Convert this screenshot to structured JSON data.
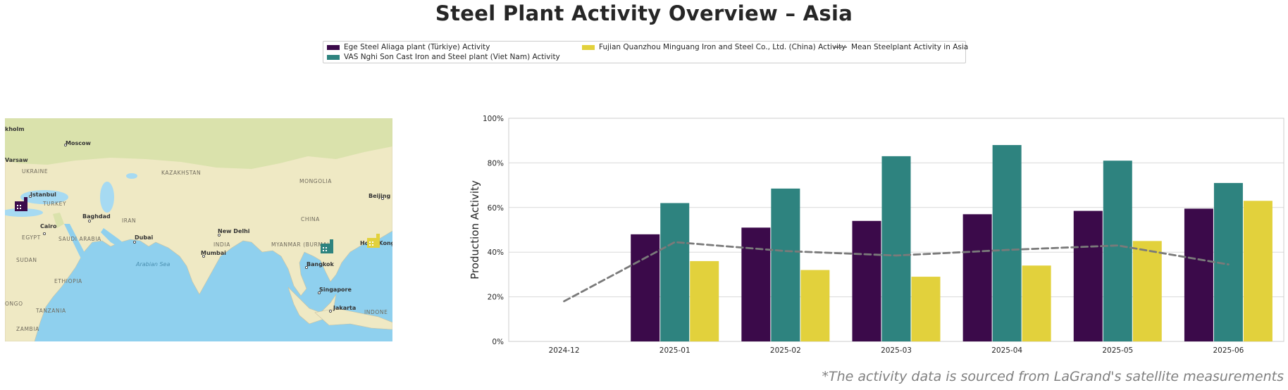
{
  "title": "Steel Plant Activity Overview – Asia",
  "legend": {
    "items": [
      {
        "label": "Ege Steel Aliaga plant (Türkiye) Activity",
        "color": "#3b0a4a",
        "kind": "bar"
      },
      {
        "label": "VAS Nghi Son Cast Iron and Steel plant (Viet Nam) Activity",
        "color": "#2e837f",
        "kind": "bar"
      },
      {
        "label": "Fujian Quanzhou Minguang Iron and Steel Co., Ltd. (China) Activity",
        "color": "#e2d13c",
        "kind": "bar"
      },
      {
        "label": "Mean Steelplant Activity in Asia",
        "color": "#7a7a7a",
        "kind": "dashed-line"
      }
    ]
  },
  "map": {
    "labels": {
      "stockholm": "kholm",
      "moscow": "Moscow",
      "warsaw": "Varsaw",
      "ukraine": "UKRAINE",
      "kazakhstan": "KAZAKHSTAN",
      "mongolia": "MONGOLIA",
      "istanbul": "Istanbul",
      "turkey": "TURKEY",
      "beijing": "Beijing",
      "baghdad": "Baghdad",
      "iran": "IRAN",
      "china": "CHINA",
      "cairo": "Cairo",
      "egypt": "EGYPT",
      "new_delhi": "New Delhi",
      "saudi_arabia": "SAUDI ARABIA",
      "dubai": "Dubai",
      "india": "INDIA",
      "myanmar": "MYANMAR (BURMA)",
      "hong_kong": "Hong Kong",
      "mumbai": "Mumbai",
      "sudan": "SUDAN",
      "bangkok": "Bangkok",
      "arabian_sea": "Arabian Sea",
      "ethiopia": "ETHIOPIA",
      "singapore": "Singapore",
      "tanzania": "TANZANIA",
      "jakarta": "Jakarta",
      "indonesia": "INDONE",
      "congo": "ONGO",
      "zambia": "ZAMBIA"
    },
    "colors": {
      "land": "#efe9c4",
      "land_green": "#d6e0a8",
      "water": "#8fd0ee",
      "lake": "#a6daf2"
    }
  },
  "chart_data": {
    "type": "bar",
    "categories": [
      "2024-12",
      "2025-01",
      "2025-02",
      "2025-03",
      "2025-04",
      "2025-05",
      "2025-06"
    ],
    "series": [
      {
        "name": "Ege Steel Aliaga plant (Türkiye) Activity",
        "color": "#3b0a4a",
        "values": [
          null,
          48,
          51,
          54,
          57,
          58.5,
          59.5
        ]
      },
      {
        "name": "VAS Nghi Son Cast Iron and Steel plant (Viet Nam) Activity",
        "color": "#2e837f",
        "values": [
          null,
          62,
          68.5,
          83,
          88,
          81,
          71
        ]
      },
      {
        "name": "Fujian Quanzhou Minguang Iron and Steel Co., Ltd. (China) Activity",
        "color": "#e2d13c",
        "values": [
          null,
          36,
          32,
          29,
          34,
          45,
          63
        ]
      }
    ],
    "line": {
      "name": "Mean Steelplant Activity in Asia",
      "color": "#7a7a7a",
      "style": "dashed",
      "values": [
        18,
        44.5,
        40.5,
        38.5,
        41,
        43,
        34.5
      ]
    },
    "ylabel": "Production Activity",
    "xlabel": "",
    "ylim": [
      0,
      100
    ],
    "yticks": [
      "0%",
      "20%",
      "40%",
      "60%",
      "80%",
      "100%"
    ],
    "grid": true
  },
  "footnote": "*The activity data is sourced from LaGrand's satellite measurements"
}
